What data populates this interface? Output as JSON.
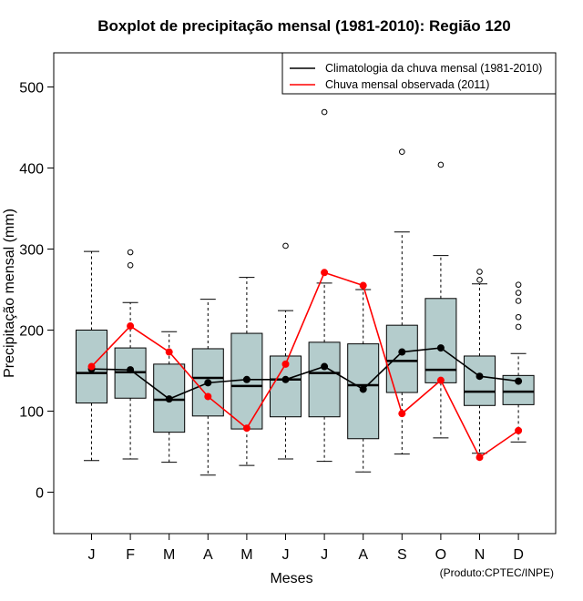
{
  "chart_data": {
    "type": "boxplot",
    "title": "Boxplot de precipitação mensal (1981-2010): Região 120",
    "xlabel": "Meses",
    "ylabel": "Precipitação mensal (mm)",
    "credit": "(Produto:CPTEC/INPE)",
    "ylim": [
      -50,
      545
    ],
    "yticks": [
      0,
      100,
      200,
      300,
      400,
      500
    ],
    "categories": [
      "J",
      "F",
      "M",
      "A",
      "M",
      "J",
      "J",
      "A",
      "S",
      "O",
      "N",
      "D"
    ],
    "box_color": "#b4cccc",
    "boxes": [
      {
        "min": 39,
        "q1": 110,
        "median": 147,
        "q3": 200,
        "max": 297,
        "outliers": []
      },
      {
        "min": 41,
        "q1": 116,
        "median": 148,
        "q3": 178,
        "max": 234,
        "outliers": [
          280,
          296
        ]
      },
      {
        "min": 37,
        "q1": 74,
        "median": 114,
        "q3": 158,
        "max": 198,
        "outliers": []
      },
      {
        "min": 21,
        "q1": 94,
        "median": 141,
        "q3": 177,
        "max": 238,
        "outliers": []
      },
      {
        "min": 33,
        "q1": 78,
        "median": 131,
        "q3": 196,
        "max": 265,
        "outliers": []
      },
      {
        "min": 41,
        "q1": 93,
        "median": 139,
        "q3": 168,
        "max": 224,
        "outliers": [
          304
        ]
      },
      {
        "min": 38,
        "q1": 93,
        "median": 147,
        "q3": 185,
        "max": 258,
        "outliers": [
          469
        ]
      },
      {
        "min": 25,
        "q1": 66,
        "median": 132,
        "q3": 183,
        "max": 250,
        "outliers": []
      },
      {
        "min": 47,
        "q1": 123,
        "median": 162,
        "q3": 206,
        "max": 321,
        "outliers": [
          420
        ]
      },
      {
        "min": 67,
        "q1": 135,
        "median": 151,
        "q3": 239,
        "max": 292,
        "outliers": [
          404
        ]
      },
      {
        "min": 48,
        "q1": 107,
        "median": 124,
        "q3": 168,
        "max": 257,
        "outliers": [
          262,
          272
        ]
      },
      {
        "min": 62,
        "q1": 108,
        "median": 124,
        "q3": 144,
        "max": 171,
        "outliers": [
          204,
          216,
          236,
          246,
          256
        ]
      }
    ],
    "series": [
      {
        "name": "Climatologia da chuva mensal (1981-2010)",
        "color": "#000000",
        "values": [
          152,
          151,
          115,
          135,
          139,
          139,
          155,
          127,
          173,
          178,
          143,
          137
        ]
      },
      {
        "name": "Chuva mensal observada (2011)",
        "color": "#ff0000",
        "values": [
          155,
          205,
          173,
          118,
          79,
          158,
          271,
          255,
          97,
          138,
          43,
          76
        ]
      }
    ],
    "legend_position": "top-right"
  }
}
